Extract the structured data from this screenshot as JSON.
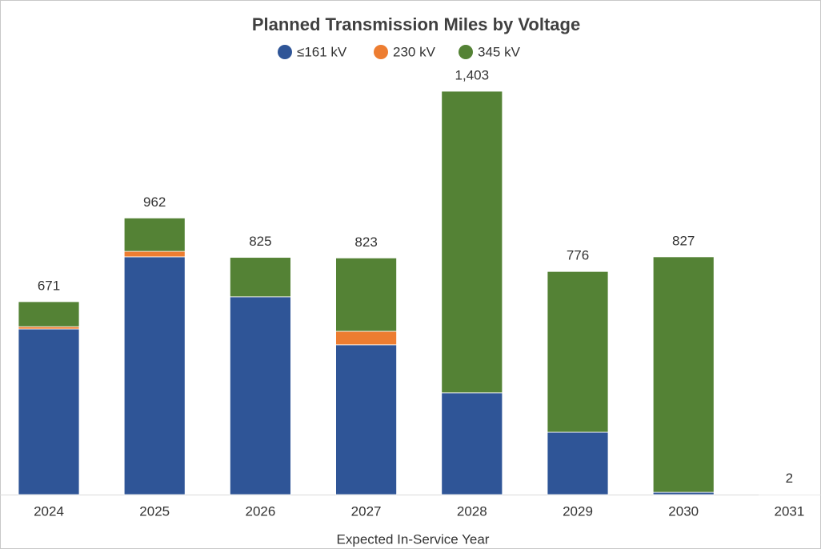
{
  "chart_data": {
    "type": "stacked_bar",
    "title": "Planned Transmission Miles by Voltage",
    "x_label": "Expected In-Service Year",
    "categories": [
      "2024",
      "2025",
      "2026",
      "2027",
      "2028",
      "2029",
      "2030",
      "2031"
    ],
    "series": [
      {
        "name": "≤161 kV",
        "color": "#2f5597",
        "values": [
          576,
          827,
          688,
          521,
          354,
          217,
          8,
          2
        ]
      },
      {
        "name": "230 kV",
        "color": "#ed7d31",
        "values": [
          8,
          19,
          0,
          47,
          0,
          0,
          0,
          0
        ]
      },
      {
        "name": "345 kV",
        "color": "#548235",
        "values": [
          87,
          116,
          137,
          255,
          1049,
          559,
          819,
          0
        ]
      }
    ],
    "total_labels": [
      "671",
      "962",
      "825",
      "823",
      "1,403",
      "776",
      "827",
      "2"
    ]
  }
}
